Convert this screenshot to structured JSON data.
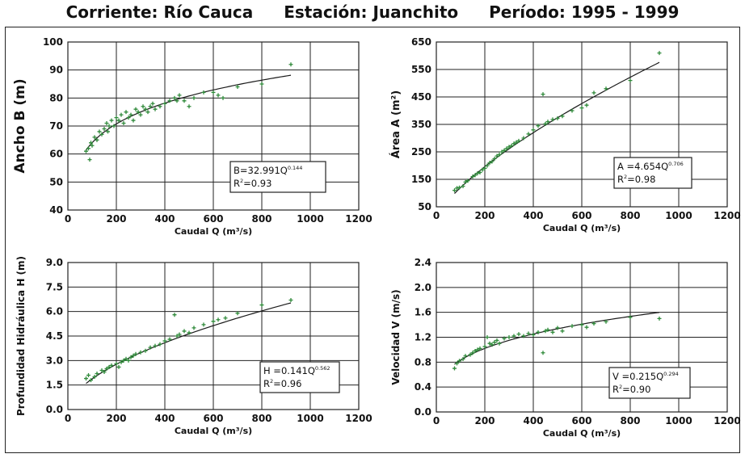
{
  "header": {
    "stream": "Corriente: Río Cauca",
    "station": "Estación: Juanchito",
    "period": "Período: 1995 - 1999"
  },
  "colors": {
    "points": "#2f8a3a",
    "curve": "#1a1a1a",
    "grid": "#222222"
  },
  "chart_data": [
    {
      "type": "scatter",
      "xlabel": "Caudal Q (m³/s)",
      "ylabel": "Ancho B (m)",
      "xlim": [
        0,
        1200
      ],
      "ylim": [
        40,
        100
      ],
      "xticks": [
        0,
        200,
        400,
        600,
        800,
        1000,
        1200
      ],
      "yticks": [
        40,
        50,
        60,
        70,
        80,
        90,
        100
      ],
      "ytick_labels": [
        "40",
        "50",
        "60",
        "70",
        "80",
        "90",
        "100"
      ],
      "equation": {
        "lhs": "B=32.991Q",
        "exp": "0.144",
        "r2_prefix": "R",
        "r2_sup": "2",
        "r2_value": "=0.93"
      },
      "fit": {
        "coef": 32.991,
        "exponent": 0.144,
        "x_range": [
          75,
          920
        ]
      },
      "series": [
        {
          "points": [
            [
              75,
              61
            ],
            [
              85,
              62
            ],
            [
              90,
              58
            ],
            [
              95,
              64
            ],
            [
              100,
              63
            ],
            [
              110,
              66
            ],
            [
              120,
              65
            ],
            [
              130,
              68
            ],
            [
              140,
              67
            ],
            [
              150,
              69
            ],
            [
              160,
              71
            ],
            [
              165,
              68
            ],
            [
              170,
              70
            ],
            [
              180,
              72
            ],
            [
              190,
              70
            ],
            [
              200,
              73
            ],
            [
              210,
              72
            ],
            [
              220,
              74
            ],
            [
              230,
              71
            ],
            [
              240,
              75
            ],
            [
              250,
              73
            ],
            [
              260,
              74
            ],
            [
              270,
              72
            ],
            [
              280,
              76
            ],
            [
              290,
              75
            ],
            [
              300,
              74
            ],
            [
              310,
              77
            ],
            [
              320,
              76
            ],
            [
              330,
              75
            ],
            [
              340,
              77
            ],
            [
              350,
              78
            ],
            [
              360,
              76
            ],
            [
              380,
              77
            ],
            [
              400,
              78
            ],
            [
              420,
              79
            ],
            [
              440,
              80
            ],
            [
              450,
              79
            ],
            [
              460,
              81
            ],
            [
              480,
              79
            ],
            [
              500,
              77
            ],
            [
              520,
              80
            ],
            [
              560,
              82
            ],
            [
              600,
              82
            ],
            [
              620,
              81
            ],
            [
              640,
              80
            ],
            [
              700,
              84
            ],
            [
              800,
              85
            ],
            [
              920,
              92
            ]
          ]
        }
      ]
    },
    {
      "type": "scatter",
      "xlabel": "Caudal Q (m³/s)",
      "ylabel": "Área A (m²)",
      "xlim": [
        0,
        1200
      ],
      "ylim": [
        50,
        650
      ],
      "xticks": [
        0,
        200,
        400,
        600,
        800,
        1000,
        1200
      ],
      "yticks": [
        50,
        150,
        250,
        350,
        450,
        550,
        650
      ],
      "ytick_labels": [
        "50",
        "150",
        "250",
        "350",
        "450",
        "550",
        "650"
      ],
      "equation": {
        "lhs": "A =4.654Q",
        "exp": "0.706",
        "r2_prefix": "R",
        "r2_sup": "2",
        "r2_value": "=0.98"
      },
      "fit": {
        "coef": 4.654,
        "exponent": 0.706,
        "x_range": [
          75,
          920
        ]
      },
      "series": [
        {
          "points": [
            [
              75,
              110
            ],
            [
              85,
              118
            ],
            [
              95,
              120
            ],
            [
              110,
              125
            ],
            [
              120,
              140
            ],
            [
              130,
              145
            ],
            [
              150,
              160
            ],
            [
              160,
              165
            ],
            [
              170,
              172
            ],
            [
              180,
              175
            ],
            [
              190,
              185
            ],
            [
              200,
              190
            ],
            [
              210,
              200
            ],
            [
              220,
              210
            ],
            [
              230,
              215
            ],
            [
              240,
              225
            ],
            [
              250,
              235
            ],
            [
              260,
              240
            ],
            [
              270,
              250
            ],
            [
              280,
              255
            ],
            [
              290,
              262
            ],
            [
              300,
              268
            ],
            [
              310,
              272
            ],
            [
              320,
              280
            ],
            [
              330,
              285
            ],
            [
              340,
              290
            ],
            [
              360,
              300
            ],
            [
              380,
              315
            ],
            [
              400,
              330
            ],
            [
              420,
              345
            ],
            [
              440,
              460
            ],
            [
              450,
              352
            ],
            [
              460,
              360
            ],
            [
              480,
              368
            ],
            [
              500,
              372
            ],
            [
              520,
              380
            ],
            [
              560,
              400
            ],
            [
              600,
              410
            ],
            [
              620,
              420
            ],
            [
              650,
              465
            ],
            [
              700,
              480
            ],
            [
              800,
              510
            ],
            [
              920,
              610
            ]
          ]
        }
      ]
    },
    {
      "type": "scatter",
      "xlabel": "Caudal Q (m³/s)",
      "ylabel": "Profundidad Hidráulica H (m)",
      "xlim": [
        0,
        1200
      ],
      "ylim": [
        0,
        9
      ],
      "xticks": [
        0,
        200,
        400,
        600,
        800,
        1000,
        1200
      ],
      "yticks": [
        0,
        1.5,
        3,
        4.5,
        6,
        7.5,
        9
      ],
      "ytick_labels": [
        "0.0",
        "1.5",
        "3.0",
        "4.5",
        "6.0",
        "7.5",
        "9.0"
      ],
      "equation": {
        "lhs": "H =0.141Q",
        "exp": "0.562",
        "r2_prefix": "R",
        "r2_sup": "2",
        "r2_value": "=0.96"
      },
      "fit": {
        "coef": 0.141,
        "exponent": 0.562,
        "x_range": [
          75,
          920
        ]
      },
      "series": [
        {
          "points": [
            [
              75,
              1.9
            ],
            [
              85,
              2.1
            ],
            [
              95,
              1.8
            ],
            [
              110,
              2.0
            ],
            [
              120,
              2.2
            ],
            [
              140,
              2.4
            ],
            [
              150,
              2.3
            ],
            [
              160,
              2.5
            ],
            [
              170,
              2.6
            ],
            [
              180,
              2.7
            ],
            [
              200,
              2.8
            ],
            [
              210,
              2.6
            ],
            [
              220,
              2.9
            ],
            [
              230,
              3.0
            ],
            [
              240,
              3.1
            ],
            [
              250,
              3.0
            ],
            [
              260,
              3.2
            ],
            [
              270,
              3.3
            ],
            [
              280,
              3.4
            ],
            [
              300,
              3.5
            ],
            [
              320,
              3.6
            ],
            [
              340,
              3.8
            ],
            [
              360,
              3.9
            ],
            [
              380,
              4.0
            ],
            [
              400,
              4.2
            ],
            [
              420,
              4.3
            ],
            [
              440,
              5.8
            ],
            [
              450,
              4.5
            ],
            [
              460,
              4.6
            ],
            [
              480,
              4.8
            ],
            [
              500,
              4.7
            ],
            [
              520,
              5.0
            ],
            [
              560,
              5.2
            ],
            [
              600,
              5.4
            ],
            [
              620,
              5.5
            ],
            [
              650,
              5.6
            ],
            [
              700,
              5.9
            ],
            [
              800,
              6.4
            ],
            [
              920,
              6.7
            ]
          ]
        }
      ]
    },
    {
      "type": "scatter",
      "xlabel": "Caudal Q (m³/s)",
      "ylabel": "Velocidad V (m/s)",
      "xlim": [
        0,
        1200
      ],
      "ylim": [
        0,
        2.4
      ],
      "xticks": [
        0,
        200,
        400,
        600,
        800,
        1000,
        1200
      ],
      "yticks": [
        0,
        0.4,
        0.8,
        1.2,
        1.6,
        2.0,
        2.4
      ],
      "ytick_labels": [
        "0.0",
        "0.4",
        "0.8",
        "1.2",
        "1.6",
        "2.0",
        "2.4"
      ],
      "equation": {
        "lhs": "V =0.215Q",
        "exp": "0.294",
        "r2_prefix": "R",
        "r2_sup": "2",
        "r2_value": "=0.90"
      },
      "fit": {
        "coef": 0.215,
        "exponent": 0.294,
        "x_range": [
          75,
          920
        ]
      },
      "series": [
        {
          "points": [
            [
              75,
              0.7
            ],
            [
              85,
              0.78
            ],
            [
              95,
              0.82
            ],
            [
              110,
              0.85
            ],
            [
              120,
              0.9
            ],
            [
              140,
              0.92
            ],
            [
              150,
              0.95
            ],
            [
              160,
              0.98
            ],
            [
              170,
              1.0
            ],
            [
              180,
              1.02
            ],
            [
              200,
              1.05
            ],
            [
              210,
              1.2
            ],
            [
              220,
              1.1
            ],
            [
              230,
              1.08
            ],
            [
              240,
              1.12
            ],
            [
              250,
              1.15
            ],
            [
              260,
              1.1
            ],
            [
              280,
              1.18
            ],
            [
              300,
              1.2
            ],
            [
              320,
              1.22
            ],
            [
              340,
              1.25
            ],
            [
              360,
              1.22
            ],
            [
              380,
              1.26
            ],
            [
              400,
              1.24
            ],
            [
              420,
              1.28
            ],
            [
              440,
              0.95
            ],
            [
              450,
              1.3
            ],
            [
              460,
              1.32
            ],
            [
              480,
              1.28
            ],
            [
              500,
              1.35
            ],
            [
              520,
              1.3
            ],
            [
              560,
              1.38
            ],
            [
              600,
              1.4
            ],
            [
              620,
              1.36
            ],
            [
              650,
              1.42
            ],
            [
              700,
              1.45
            ],
            [
              800,
              1.52
            ],
            [
              920,
              1.5
            ]
          ]
        }
      ]
    }
  ]
}
